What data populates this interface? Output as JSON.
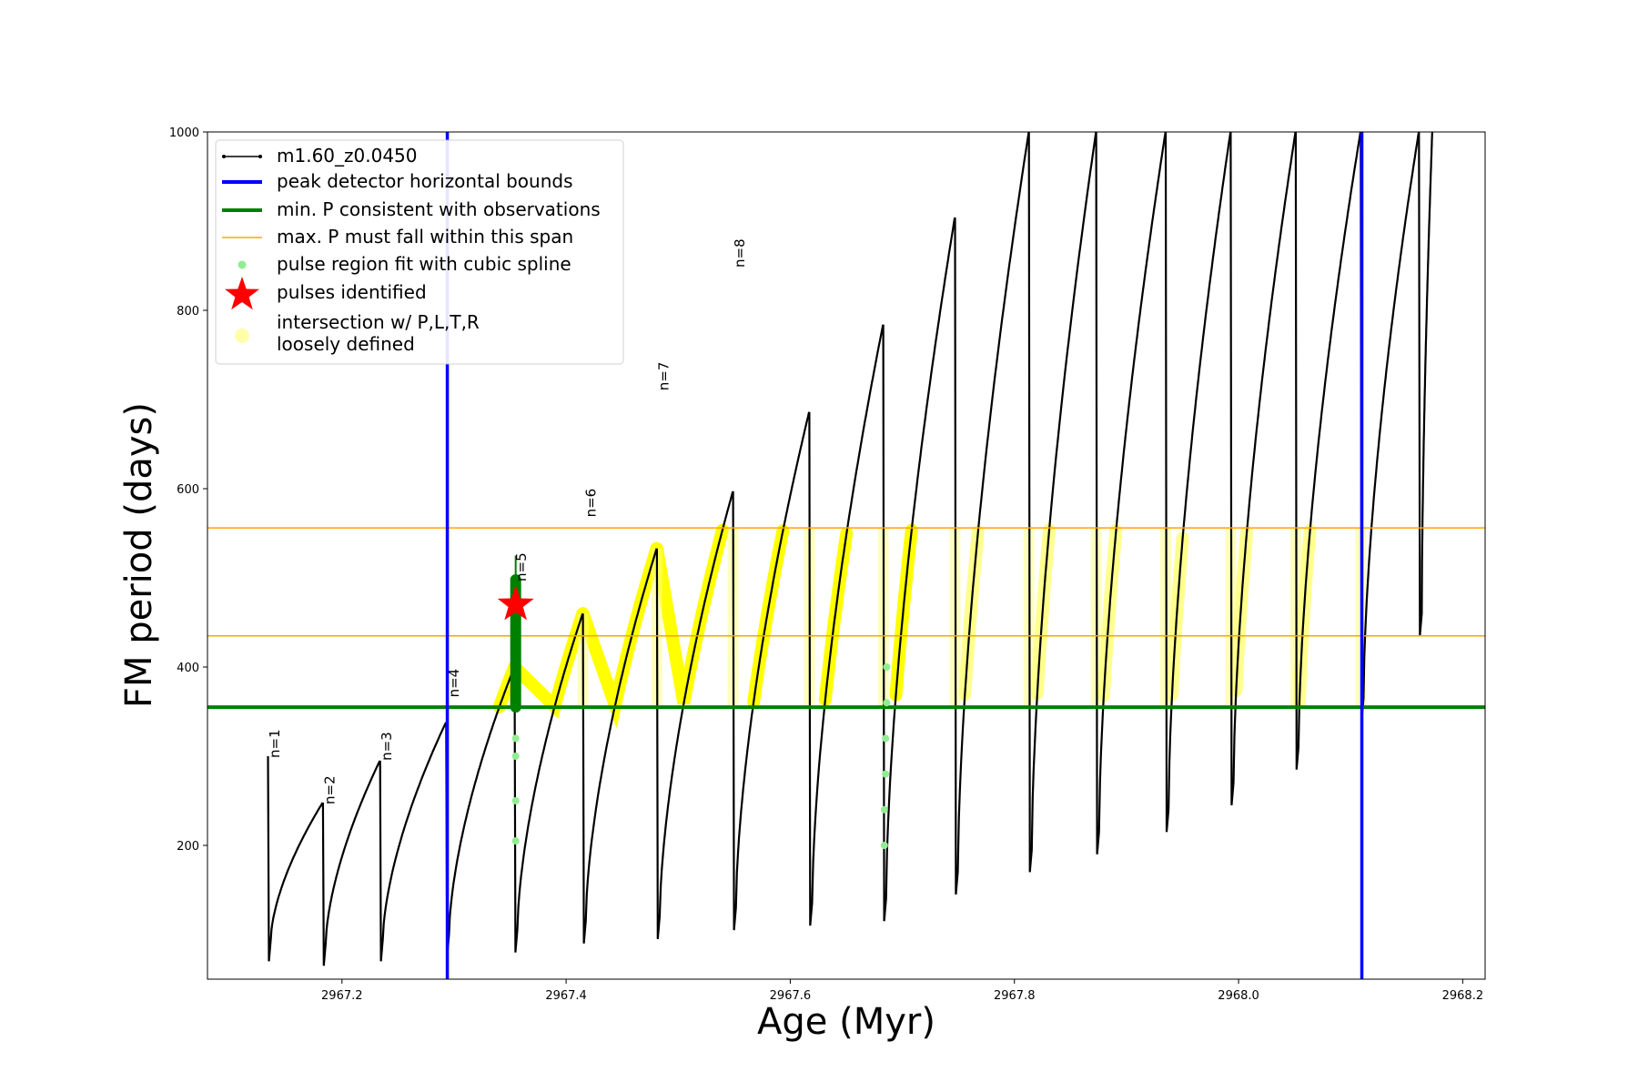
{
  "chart_data": {
    "type": "line",
    "xlabel": "Age (Myr)",
    "ylabel": "FM period (days)",
    "xlim": [
      2967.08,
      2968.22
    ],
    "ylim": [
      50,
      1000
    ],
    "xticks": [
      2967.2,
      2967.4,
      2967.6,
      2967.8,
      2968.0,
      2968.2
    ],
    "xtick_labels": [
      "2967.2",
      "2967.4",
      "2967.6",
      "2967.8",
      "2968.0",
      "2968.2"
    ],
    "yticks": [
      200,
      400,
      600,
      800,
      1000
    ],
    "ytick_labels": [
      "200",
      "400",
      "600",
      "800",
      "1000"
    ],
    "grid": false,
    "legend_position": "top-left",
    "legend": [
      {
        "label": "m1.60_z0.0450",
        "kind": "line-marker",
        "color": "#000000"
      },
      {
        "label": "peak detector horizontal bounds",
        "kind": "line",
        "color": "#0000ff"
      },
      {
        "label": "min. P consistent with observations",
        "kind": "line",
        "color": "#008000"
      },
      {
        "label": "max. P must fall within this span",
        "kind": "thin-line",
        "color": "#ffa500"
      },
      {
        "label": "pulse region fit with cubic spline",
        "kind": "dot",
        "color": "#90ee90"
      },
      {
        "label": "pulses identified",
        "kind": "star",
        "color": "#ff0000"
      },
      {
        "label_lines": [
          "intersection w/ P,L,T,R",
          "loosely defined"
        ],
        "kind": "faint-dot",
        "color": "#ffffaa"
      }
    ],
    "vertical_bounds": [
      2967.294,
      2968.11
    ],
    "min_p": 355,
    "max_p_span": [
      435,
      556
    ],
    "pulse_peaks": [
      {
        "age": 2967.134,
        "min": 70,
        "peak": 300
      },
      {
        "age": 2967.183,
        "min": 65,
        "peak": 248
      },
      {
        "age": 2967.234,
        "min": 70,
        "peak": 295
      },
      {
        "age": 2967.293,
        "min": 75,
        "peak": 338
      },
      {
        "age": 2967.354,
        "min": 80,
        "peak": 400
      },
      {
        "age": 2967.415,
        "min": 90,
        "peak": 460
      },
      {
        "age": 2967.481,
        "min": 95,
        "peak": 533
      },
      {
        "age": 2967.549,
        "min": 105,
        "peak": 597
      },
      {
        "age": 2967.617,
        "min": 110,
        "peak": 686
      },
      {
        "age": 2967.683,
        "min": 115,
        "peak": 784
      },
      {
        "age": 2967.747,
        "min": 145,
        "peak": 904
      },
      {
        "age": 2967.813,
        "min": 170,
        "peak": 1000
      },
      {
        "age": 2967.873,
        "min": 190,
        "peak": 1000
      },
      {
        "age": 2967.935,
        "min": 215,
        "peak": 1000
      },
      {
        "age": 2967.993,
        "min": 245,
        "peak": 1000
      },
      {
        "age": 2968.051,
        "min": 285,
        "peak": 1000
      },
      {
        "age": 2968.109,
        "min": 340,
        "peak": 1000
      },
      {
        "age": 2968.161,
        "min": 435,
        "peak": 1000
      }
    ],
    "pulse_labels": [
      {
        "text": "n=1",
        "age": 2967.136,
        "period": 300
      },
      {
        "text": "n=2",
        "age": 2967.185,
        "period": 248
      },
      {
        "text": "n=3",
        "age": 2967.236,
        "period": 297
      },
      {
        "text": "n=4",
        "age": 2967.296,
        "period": 368
      },
      {
        "text": "n=5",
        "age": 2967.356,
        "period": 498
      },
      {
        "text": "n=6",
        "age": 2967.418,
        "period": 570
      },
      {
        "text": "n=7",
        "age": 2967.483,
        "period": 712
      },
      {
        "text": "n=8",
        "age": 2967.551,
        "period": 850
      }
    ],
    "identified_pulse": {
      "age": 2967.355,
      "period": 470
    },
    "green_segment": {
      "age": 2967.355,
      "from": 355,
      "to": 498,
      "tick_to": 525
    },
    "spline_points": [
      {
        "age": 2967.355,
        "period": 205
      },
      {
        "age": 2967.355,
        "period": 250
      },
      {
        "age": 2967.355,
        "period": 300
      },
      {
        "age": 2967.355,
        "period": 320
      },
      {
        "age": 2967.684,
        "period": 200
      },
      {
        "age": 2967.684,
        "period": 240
      },
      {
        "age": 2967.685,
        "period": 280
      },
      {
        "age": 2967.685,
        "period": 320
      },
      {
        "age": 2967.686,
        "period": 360
      },
      {
        "age": 2967.686,
        "period": 400
      }
    ]
  }
}
